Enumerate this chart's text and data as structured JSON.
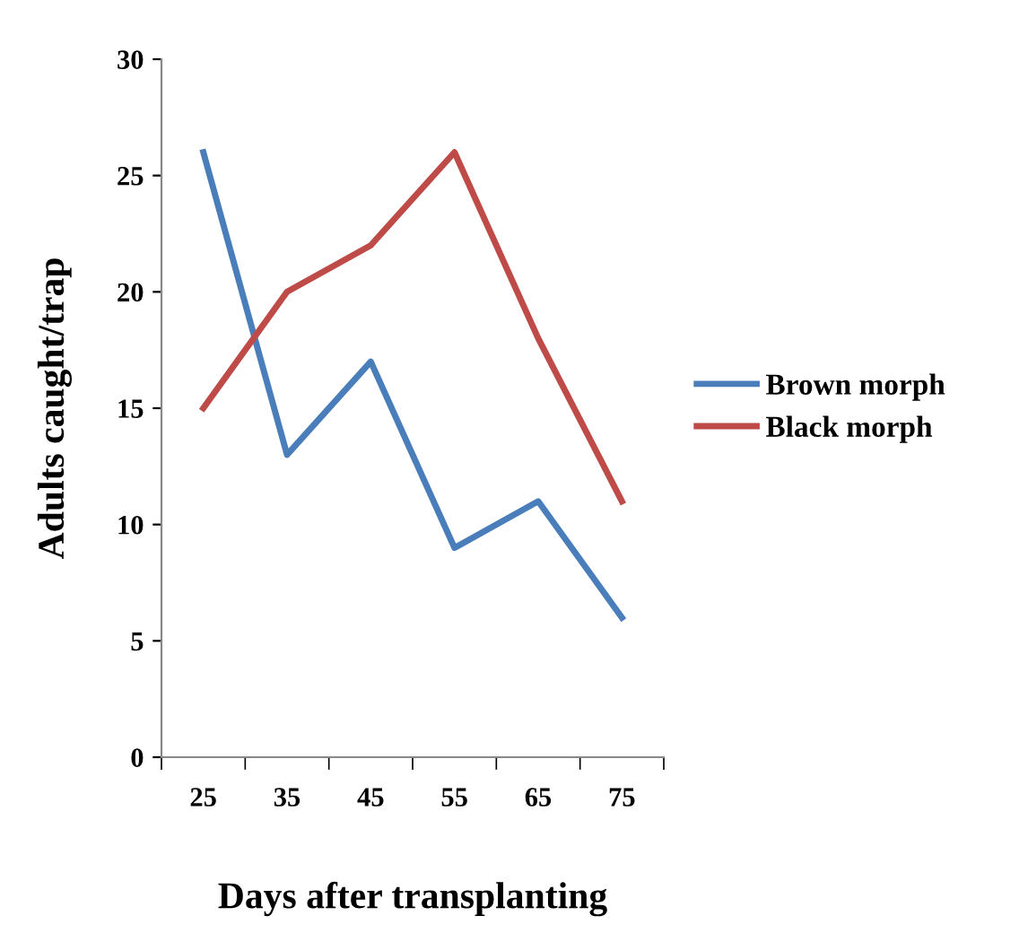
{
  "chart_data": {
    "type": "line",
    "xlabel": "Days after transplanting",
    "ylabel": "Adults caught/trap",
    "categories": [
      "25",
      "35",
      "45",
      "55",
      "65",
      "75"
    ],
    "series": [
      {
        "name": "Brown morph",
        "color": "#4a7ebb",
        "values": [
          26,
          13,
          17,
          9,
          11,
          6
        ]
      },
      {
        "name": "Black morph",
        "color": "#be4b48",
        "values": [
          15,
          20,
          22,
          26,
          18,
          11
        ]
      }
    ],
    "ylim": [
      0,
      30
    ],
    "yticks": [
      0,
      5,
      10,
      15,
      20,
      25,
      30
    ],
    "grid": false,
    "legend": "right",
    "marker": "none",
    "line_style": "solid"
  }
}
